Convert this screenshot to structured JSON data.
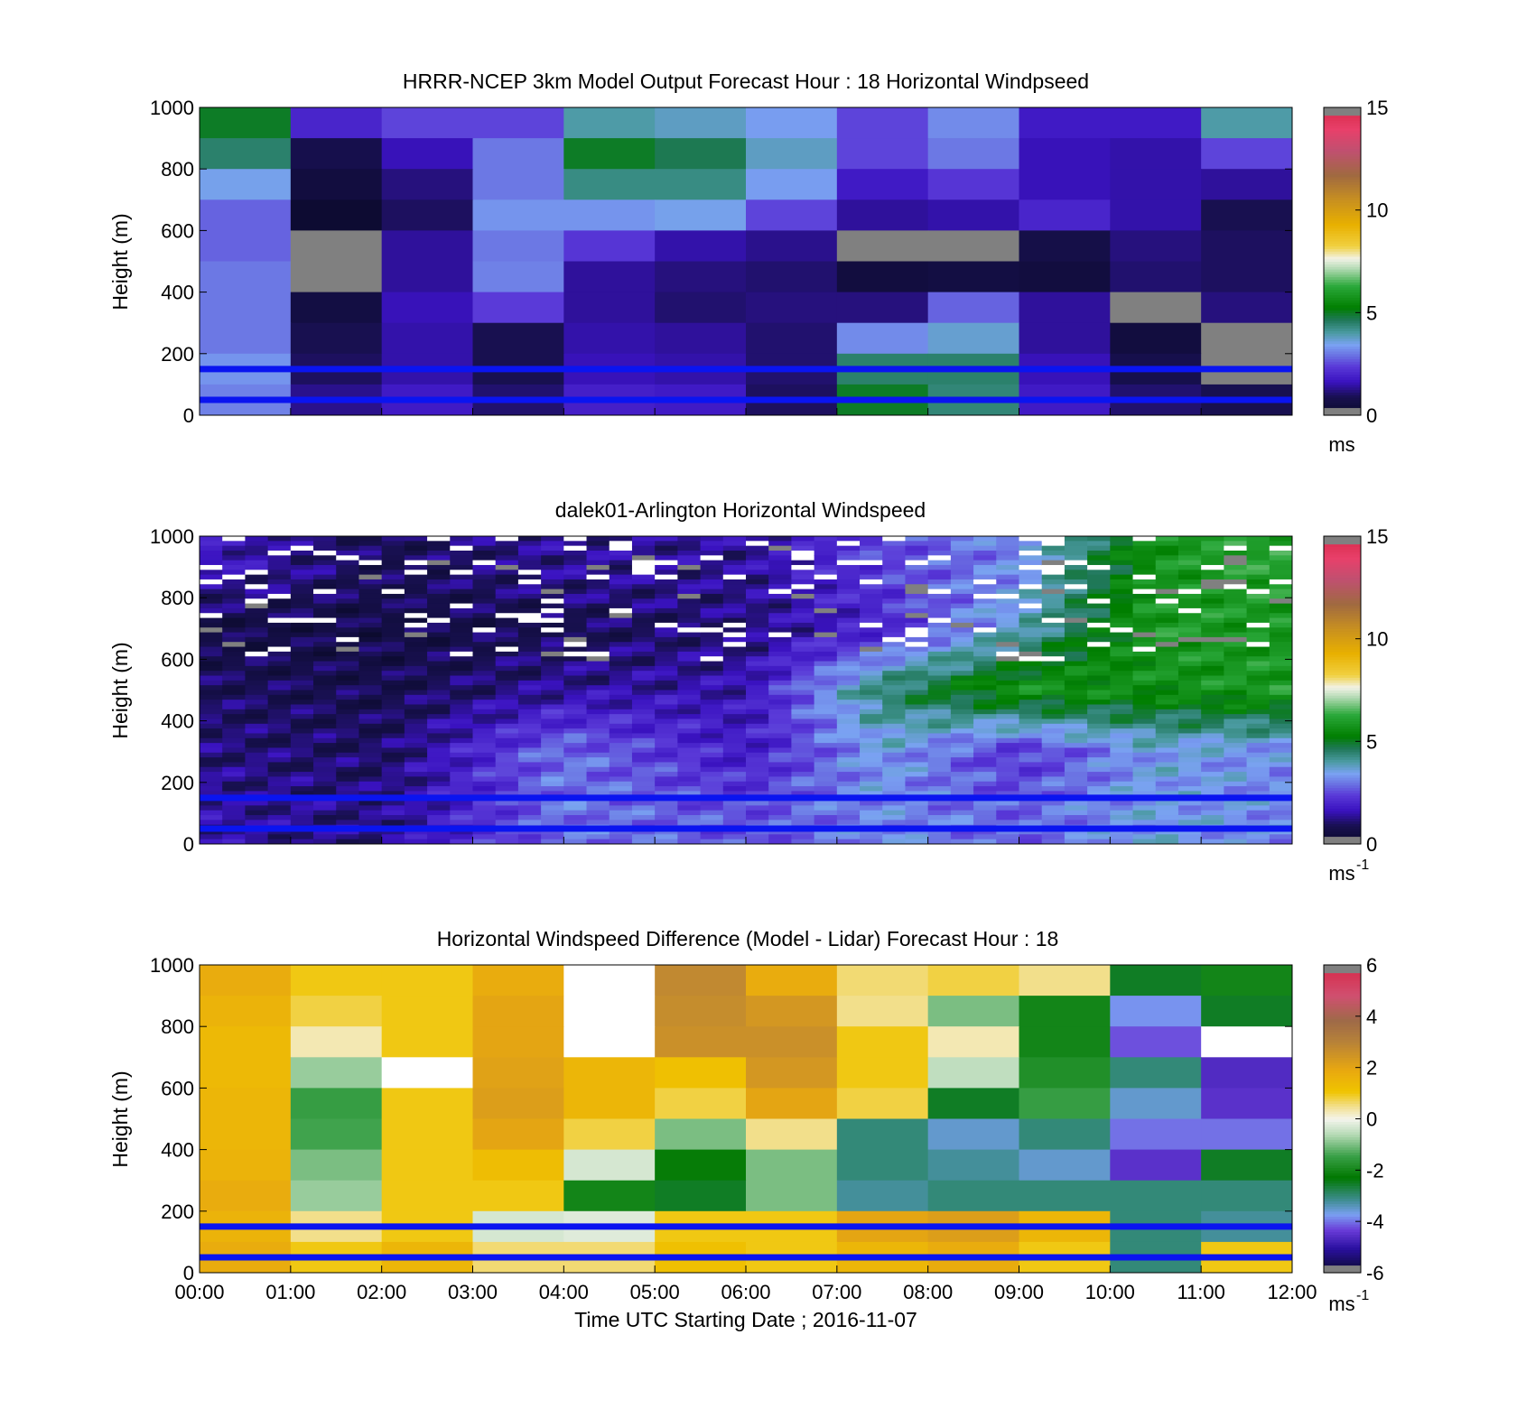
{
  "chart_data": [
    {
      "type": "heatmap",
      "title": "HRRR-NCEP 3km Model Output   Forecast Hour : 18 Horizontal Windpseed",
      "ylabel": "Height (m)",
      "ylim": [
        0,
        1000
      ],
      "yticks": [
        "0",
        "200",
        "400",
        "600",
        "800",
        "1000"
      ],
      "x_bins": [
        "00:00",
        "01:00",
        "02:00",
        "03:00",
        "04:00",
        "05:00",
        "06:00",
        "07:00",
        "08:00",
        "09:00",
        "10:00",
        "11:00",
        "12:00"
      ],
      "colorbar": {
        "range": [
          0,
          15
        ],
        "ticks": [
          "0",
          "5",
          "10",
          "15"
        ],
        "unit": "ms",
        "unit_sup": ""
      },
      "reference_lines_m": [
        150,
        50
      ],
      "height_levels_m": [
        1000,
        900,
        800,
        700,
        600,
        500,
        400,
        300,
        200,
        100,
        0
      ],
      "values_ms": [
        [
          5.0,
          2.0,
          2.5,
          2.5,
          4.0,
          3.8,
          3.4,
          2.5,
          3.2,
          1.8,
          1.8,
          4.0
        ],
        [
          4.5,
          0.8,
          1.6,
          3.0,
          5.0,
          4.7,
          3.8,
          2.5,
          3.0,
          1.6,
          1.5,
          2.5
        ],
        [
          3.5,
          0.5,
          1.2,
          3.0,
          4.3,
          4.3,
          3.4,
          1.8,
          2.3,
          1.6,
          1.5,
          1.4
        ],
        [
          2.8,
          0.2,
          1.0,
          3.3,
          3.3,
          3.5,
          2.5,
          1.4,
          1.5,
          2.0,
          1.5,
          0.9
        ],
        [
          2.8,
          null,
          1.4,
          3.0,
          2.3,
          1.5,
          1.3,
          null,
          null,
          0.7,
          1.2,
          1.0
        ],
        [
          3.0,
          null,
          1.4,
          3.1,
          1.4,
          1.2,
          1.1,
          0.5,
          0.6,
          0.5,
          1.1,
          1.0
        ],
        [
          3.0,
          0.6,
          1.6,
          2.4,
          1.4,
          1.1,
          1.2,
          1.2,
          2.8,
          1.4,
          null,
          1.2
        ],
        [
          3.0,
          0.9,
          1.5,
          0.9,
          1.5,
          1.4,
          1.1,
          3.2,
          3.7,
          1.4,
          0.5,
          null
        ],
        [
          3.3,
          1.0,
          1.5,
          0.9,
          1.6,
          1.5,
          1.1,
          4.5,
          4.5,
          1.6,
          0.8,
          null
        ],
        [
          3.1,
          1.3,
          1.8,
          1.1,
          1.9,
          1.8,
          1.0,
          5.0,
          4.4,
          1.8,
          1.1,
          0.9
        ]
      ]
    },
    {
      "type": "heatmap",
      "title": "dalek01-Arlington  Horizontal Windspeed",
      "ylabel": "Height (m)",
      "ylim": [
        0,
        1000
      ],
      "yticks": [
        "0",
        "200",
        "400",
        "600",
        "800",
        "1000"
      ],
      "x_range_hours": [
        0,
        12
      ],
      "colorbar": {
        "range": [
          0,
          15
        ],
        "ticks": [
          "0",
          "5",
          "10",
          "15"
        ],
        "unit": "ms",
        "unit_sup": "-1"
      },
      "reference_lines_m": [
        150,
        50
      ],
      "profile_description": "Light winds (0.5-2 m/s) below 600 m until about 07:00, with a stronger jet (3-7 m/s) near 150-350 m from 04:00; winds above 400 m strengthen to 5-7 m/s after 08:00; gaps (white) and low-quality cells (grey) scattered above 600 m.",
      "speed_keypoints": {
        "hours": [
          0,
          2,
          4,
          6,
          7.5,
          9,
          10.5,
          12
        ],
        "heights_m": [
          100,
          300,
          500,
          700,
          900
        ],
        "values_ms": [
          [
            1.5,
            1.2,
            3.0,
            2.6,
            3.2,
            2.8,
            3.5,
            3.2
          ],
          [
            1.2,
            1.0,
            3.0,
            1.8,
            3.5,
            2.2,
            3.5,
            3.2
          ],
          [
            1.0,
            0.8,
            1.4,
            1.6,
            4.5,
            5.8,
            5.6,
            6.0
          ],
          [
            0.7,
            0.7,
            0.9,
            1.2,
            2.0,
            3.8,
            6.0,
            5.8
          ],
          [
            1.8,
            0.9,
            1.4,
            1.4,
            2.5,
            3.2,
            5.8,
            6.2
          ]
        ]
      }
    },
    {
      "type": "heatmap",
      "title": "Horizontal Windspeed Difference (Model - Lidar) Forecast Hour : 18",
      "ylabel": "Height (m)",
      "xlabel": "Time UTC  Starting Date ; 2016-11-07",
      "ylim": [
        0,
        1000
      ],
      "yticks": [
        "0",
        "200",
        "400",
        "600",
        "800",
        "1000"
      ],
      "xticks": [
        "00:00",
        "01:00",
        "02:00",
        "03:00",
        "04:00",
        "05:00",
        "06:00",
        "07:00",
        "08:00",
        "09:00",
        "10:00",
        "11:00",
        "12:00"
      ],
      "colorbar": {
        "range": [
          -6,
          6
        ],
        "ticks": [
          "-6",
          "-4",
          "-2",
          "0",
          "2",
          "4",
          "6"
        ],
        "unit": "ms",
        "unit_sup": "-1"
      },
      "reference_lines_m": [
        150,
        50
      ],
      "height_levels_m": [
        1000,
        900,
        800,
        700,
        600,
        500,
        400,
        300,
        200,
        100,
        0
      ],
      "values_ms": [
        [
          1.8,
          1.0,
          1.0,
          1.8,
          null,
          2.8,
          1.8,
          0.6,
          0.8,
          0.5,
          -2.5,
          -2.0
        ],
        [
          1.6,
          0.8,
          1.0,
          2.0,
          null,
          2.7,
          2.4,
          0.5,
          -1.0,
          -2.0,
          -3.8,
          -2.5
        ],
        [
          1.4,
          0.3,
          1.0,
          2.0,
          null,
          2.6,
          2.6,
          1.0,
          0.3,
          -2.0,
          -4.2,
          null
        ],
        [
          1.4,
          -0.8,
          null,
          2.1,
          1.5,
          1.2,
          2.4,
          1.0,
          -0.5,
          -1.8,
          -3.0,
          -4.6
        ],
        [
          1.5,
          -1.5,
          1.0,
          2.2,
          1.5,
          0.8,
          2.0,
          0.8,
          -2.5,
          -1.5,
          -3.5,
          -4.5
        ],
        [
          1.5,
          -1.4,
          1.0,
          2.0,
          0.8,
          -1.0,
          0.5,
          -3.0,
          -3.5,
          -3.0,
          -4.0,
          -4.0
        ],
        [
          1.6,
          -1.0,
          1.0,
          1.3,
          -0.3,
          -2.2,
          -1.0,
          -3.0,
          -3.2,
          -3.5,
          -4.5,
          -2.5
        ],
        [
          1.8,
          -0.8,
          1.0,
          1.0,
          -2.0,
          -2.5,
          -1.0,
          -3.2,
          -3.0,
          -3.0,
          -3.0,
          -3.0
        ],
        [
          1.6,
          0.5,
          1.0,
          -0.3,
          -0.2,
          1.0,
          1.0,
          2.0,
          2.2,
          1.5,
          -3.0,
          -3.2
        ],
        [
          1.8,
          1.0,
          1.5,
          0.6,
          0.6,
          1.2,
          1.0,
          1.5,
          1.8,
          1.0,
          -3.0,
          1.0
        ]
      ]
    }
  ]
}
